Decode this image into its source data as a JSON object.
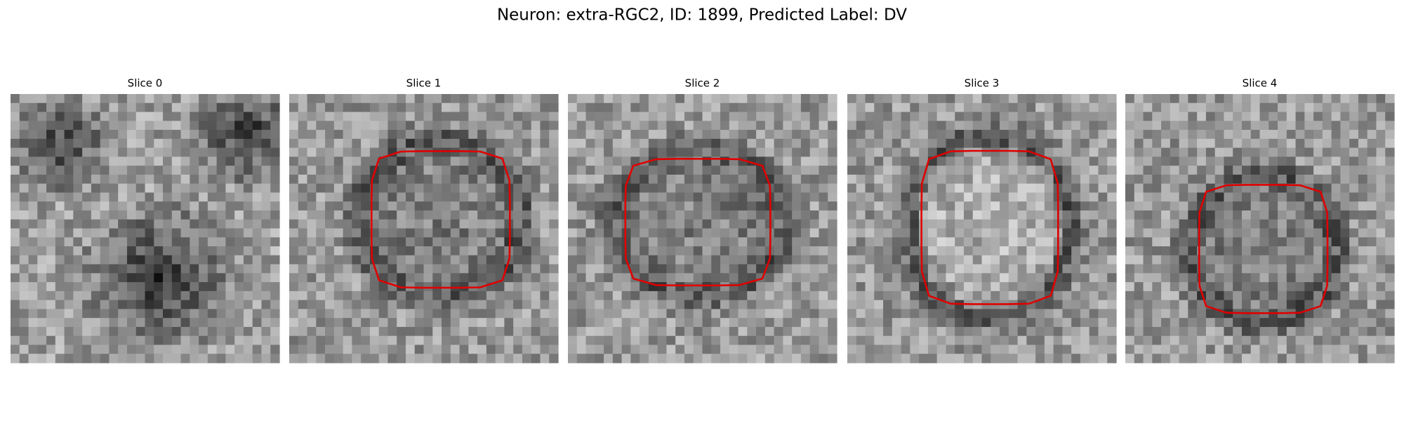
{
  "title": "Neuron: extra-RGC2, ID: 1899, Predicted Label: DV",
  "panels": [
    {
      "title": "Slice 0"
    },
    {
      "title": "Slice 1"
    },
    {
      "title": "Slice 2"
    },
    {
      "title": "Slice 3"
    },
    {
      "title": "Slice 4"
    }
  ]
}
